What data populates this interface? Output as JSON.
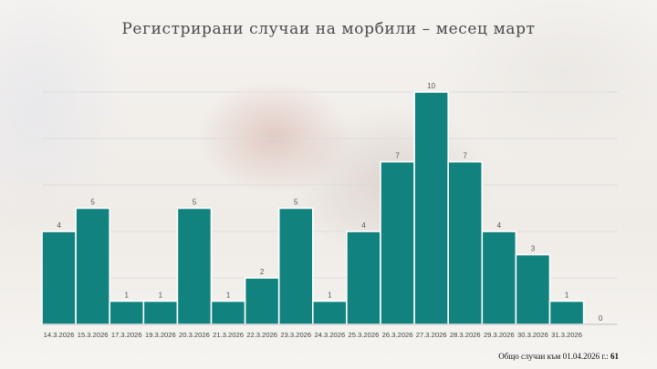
{
  "title": "Регистрирани случаи на морбили – месец март",
  "footer": {
    "label": "Общо случаи към 01.04.2026 г.:",
    "total": "61"
  },
  "colors": {
    "bar": "#12827e",
    "bar_border": "#ffffff",
    "grid": "#d9d9d9",
    "tick_text": "#444444",
    "value_text": "#555555"
  },
  "chart_data": {
    "type": "bar",
    "title": "Регистрирани случаи на морбили – месец март",
    "xlabel": "",
    "ylabel": "",
    "ylim": [
      0,
      10
    ],
    "grid": true,
    "categories": [
      "14.3.2026",
      "15.3.2026",
      "17.3.2026",
      "19.3.2026",
      "20.3.2026",
      "21.3.2026",
      "22.3.2026",
      "23.3.2026",
      "24.3.2026",
      "25.3.2026",
      "26.3.2026",
      "27.3.2026",
      "28.3.2026",
      "29.3.2026",
      "30.3.2026",
      "31.3.2026",
      ""
    ],
    "values": [
      4,
      5,
      1,
      1,
      5,
      1,
      2,
      5,
      1,
      4,
      7,
      10,
      7,
      4,
      3,
      1,
      0
    ]
  }
}
